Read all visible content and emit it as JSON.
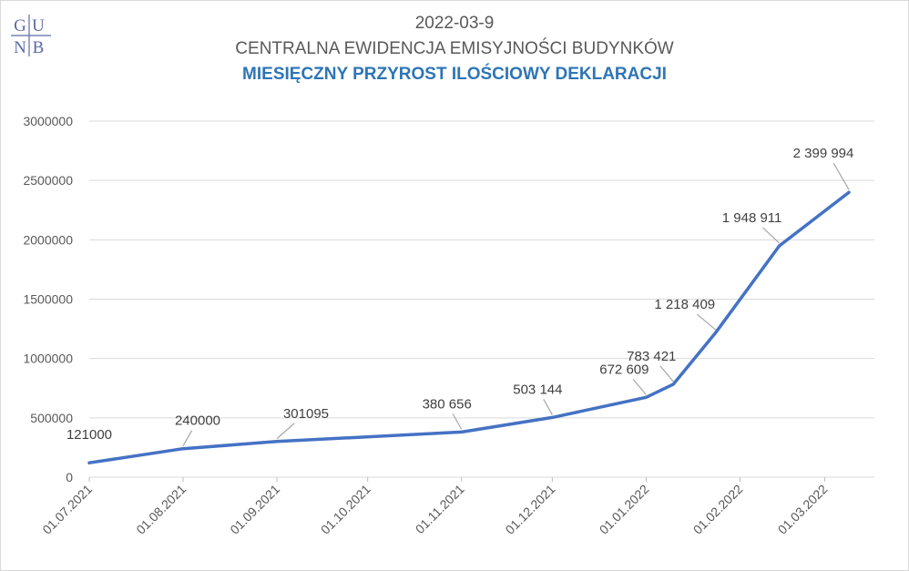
{
  "chart_data": {
    "type": "line",
    "title": "CENTRALNA EWIDENCJA EMISYJNOŚCI BUDYNKÓW",
    "date_line": "2022-03-9",
    "subtitle": "MIESIĘCZNY PRZYROST ILOŚCIOWY DEKLARACJI",
    "logo_text": [
      "G",
      "U",
      "N",
      "B"
    ],
    "xlabel": "",
    "ylabel": "",
    "ylim": [
      0,
      3000000
    ],
    "yticks": [
      "0",
      "500000",
      "1000000",
      "1500000",
      "2000000",
      "2500000",
      "3000000"
    ],
    "xticks": [
      "01.07.2021",
      "01.08.2021",
      "01.09.2021",
      "01.10.2021",
      "01.11.2021",
      "01.12.2021",
      "01.01.2022",
      "01.02.2022",
      "01.03.2022"
    ],
    "x_date_range": [
      "2021-07-01",
      "2022-03-09"
    ],
    "grid": true,
    "line_color": "#4472c4",
    "points": [
      {
        "date": "2021-07-01",
        "value": 121000,
        "label": "121000"
      },
      {
        "date": "2021-08-01",
        "value": 240000,
        "label": "240000"
      },
      {
        "date": "2021-09-01",
        "value": 301095,
        "label": "301095"
      },
      {
        "date": "2021-11-01",
        "value": 380656,
        "label": "380 656"
      },
      {
        "date": "2021-12-01",
        "value": 503144,
        "label": "503 144"
      },
      {
        "date": "2022-01-01",
        "value": 672609,
        "label": "672 609"
      },
      {
        "date": "2022-01-10",
        "value": 783421,
        "label": "783 421"
      },
      {
        "date": "2022-01-24",
        "value": 1218409,
        "label": "1 218 409"
      },
      {
        "date": "2022-02-14",
        "value": 1948911,
        "label": "1 948 911"
      },
      {
        "date": "2022-03-09",
        "value": 2399994,
        "label": "2 399 994"
      }
    ]
  }
}
